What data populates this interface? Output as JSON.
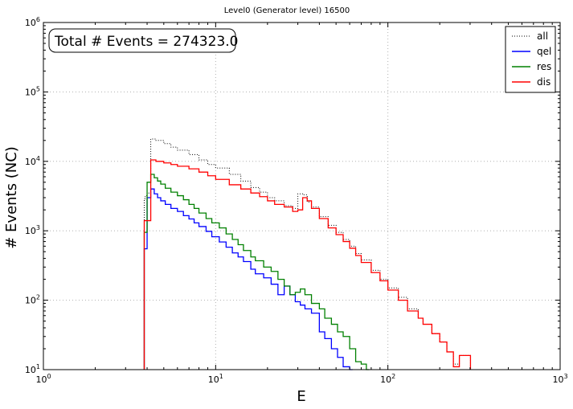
{
  "chart_data": {
    "type": "line",
    "title": "Level0 (Generator level) 16500",
    "xlabel": "E",
    "ylabel": "# Events (NC)",
    "xscale": "log",
    "yscale": "log",
    "xlim": [
      1,
      1000
    ],
    "ylim": [
      10,
      1000000
    ],
    "grid": true,
    "legend_position": "top-right",
    "annotation": "Total # Events = 274323.0",
    "x_tick_labels": [
      "10",
      "10",
      "10",
      "10"
    ],
    "x_tick_exponents": [
      "0",
      "1",
      "2",
      "3"
    ],
    "y_tick_labels": [
      "10",
      "10",
      "10",
      "10",
      "10",
      "10"
    ],
    "y_tick_exponents": [
      "1",
      "2",
      "3",
      "4",
      "5",
      "6"
    ],
    "series": [
      {
        "name": "all",
        "color": "#000000",
        "style": "dotted",
        "x": [
          3.85,
          3.9,
          4.0,
          4.2,
          4.5,
          5.0,
          5.5,
          6.0,
          7.0,
          8.0,
          9.0,
          10.0,
          12.0,
          14.0,
          16.0,
          18.0,
          20.0,
          22.0,
          25.0,
          28.0,
          30.0,
          32.0,
          34.0,
          36.0,
          40.0,
          45.0,
          50.0,
          55.0,
          60.0,
          65.0,
          70.0,
          80.0,
          90.0,
          100.0,
          115.0,
          130.0,
          150.0,
          160.0,
          180.0,
          200.0,
          220.0,
          240.0,
          260.0,
          280.0,
          290.0
        ],
        "y": [
          2900,
          3200,
          3500,
          21000,
          20000,
          18000,
          16000,
          14500,
          12500,
          10500,
          9000,
          8000,
          6500,
          5200,
          4200,
          3600,
          3000,
          2700,
          2300,
          2100,
          3400,
          3300,
          2600,
          2200,
          1600,
          1200,
          950,
          750,
          600,
          470,
          380,
          270,
          200,
          150,
          110,
          75,
          55,
          45,
          33,
          25,
          18,
          12,
          16,
          16,
          16
        ]
      },
      {
        "name": "qel",
        "color": "#0000ff",
        "style": "solid",
        "x": [
          3.85,
          4.0,
          4.2,
          4.4,
          4.6,
          4.8,
          5.1,
          5.5,
          6.0,
          6.5,
          7.0,
          7.5,
          8.0,
          8.8,
          9.5,
          10.5,
          11.5,
          12.5,
          13.5,
          14.5,
          16.0,
          17.0,
          19.0,
          21.0,
          23.0,
          25.0,
          27.0,
          29.0,
          31.0,
          33.0,
          36.0,
          40.0,
          43.0,
          47.0,
          51.0,
          55.0,
          60.0
        ],
        "y": [
          550,
          3000,
          4000,
          3400,
          3000,
          2700,
          2400,
          2100,
          1900,
          1650,
          1480,
          1300,
          1150,
          980,
          820,
          690,
          580,
          480,
          420,
          360,
          280,
          240,
          210,
          170,
          120,
          160,
          120,
          95,
          85,
          75,
          65,
          35,
          28,
          20,
          15,
          11,
          10
        ]
      },
      {
        "name": "res",
        "color": "#008000",
        "style": "solid",
        "x": [
          3.85,
          4.0,
          4.2,
          4.4,
          4.6,
          4.8,
          5.1,
          5.5,
          6.0,
          6.5,
          7.0,
          7.5,
          8.0,
          8.8,
          9.5,
          10.5,
          11.5,
          12.5,
          13.5,
          14.5,
          16.0,
          17.0,
          19.0,
          21.0,
          23.0,
          25.0,
          27.0,
          29.0,
          31.0,
          33.0,
          36.0,
          40.0,
          43.0,
          47.0,
          51.0,
          55.0,
          60.0,
          65.0,
          70.0,
          75.0
        ],
        "y": [
          950,
          5000,
          6500,
          5800,
          5200,
          4700,
          4100,
          3600,
          3200,
          2800,
          2400,
          2100,
          1800,
          1500,
          1300,
          1100,
          900,
          750,
          630,
          520,
          420,
          370,
          300,
          260,
          200,
          160,
          120,
          130,
          145,
          120,
          90,
          75,
          55,
          45,
          35,
          30,
          20,
          13,
          12,
          10
        ]
      },
      {
        "name": "dis",
        "color": "#ff0000",
        "style": "solid",
        "x": [
          3.85,
          4.0,
          4.2,
          4.5,
          5.0,
          5.5,
          6.0,
          7.0,
          8.0,
          9.0,
          10.0,
          12.0,
          14.0,
          16.0,
          18.0,
          20.0,
          22.0,
          25.0,
          28.0,
          30.0,
          32.0,
          34.0,
          36.0,
          40.0,
          45.0,
          50.0,
          55.0,
          60.0,
          65.0,
          70.0,
          80.0,
          90.0,
          100.0,
          115.0,
          130.0,
          150.0,
          160.0,
          180.0,
          200.0,
          220.0,
          240.0,
          260.0,
          280.0,
          290.0
        ],
        "y": [
          1400,
          1400,
          10500,
          10000,
          9500,
          9000,
          8500,
          7800,
          7000,
          6200,
          5500,
          4600,
          4000,
          3500,
          3100,
          2700,
          2400,
          2200,
          1900,
          2000,
          3000,
          2700,
          2100,
          1500,
          1100,
          880,
          700,
          560,
          440,
          350,
          250,
          190,
          140,
          100,
          70,
          55,
          45,
          33,
          25,
          18,
          11,
          16,
          16,
          16
        ]
      }
    ]
  }
}
